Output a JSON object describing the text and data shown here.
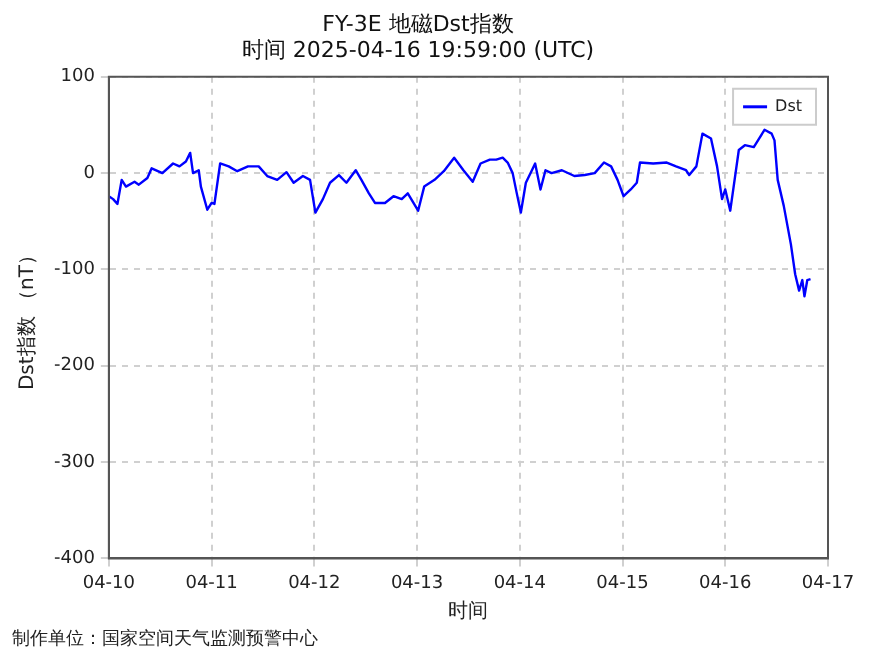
{
  "chart_data": {
    "type": "line",
    "title": "FY-3E 地磁Dst指数",
    "subtitle": "时间 2025-04-16 19:59:00 (UTC)",
    "xlabel": "时间",
    "ylabel": "Dst指数 （nT）",
    "annotations": [
      "制作单位：国家空间天气监测预警中心"
    ],
    "xlim": [
      "2025-04-10",
      "2025-04-17"
    ],
    "xticks": [
      {
        "value": "2025-04-10",
        "label": "04-10"
      },
      {
        "value": "2025-04-11",
        "label": "04-11"
      },
      {
        "value": "2025-04-12",
        "label": "04-12"
      },
      {
        "value": "2025-04-13",
        "label": "04-13"
      },
      {
        "value": "2025-04-14",
        "label": "04-14"
      },
      {
        "value": "2025-04-15",
        "label": "04-15"
      },
      {
        "value": "2025-04-16",
        "label": "04-16"
      },
      {
        "value": "2025-04-17",
        "label": "04-17"
      }
    ],
    "ylim": [
      -400,
      100
    ],
    "yticks": [
      -400,
      -300,
      -200,
      -100,
      0,
      100
    ],
    "grid": true,
    "legend": "top right",
    "marker": "none",
    "line_style": "solid",
    "x": [
      "2025-04-10T00:00",
      "2025-04-10T01:00",
      "2025-04-10T02:00",
      "2025-04-10T03:00",
      "2025-04-10T04:00",
      "2025-04-10T06:00",
      "2025-04-10T07:00",
      "2025-04-10T09:00",
      "2025-04-10T10:00",
      "2025-04-10T12:30",
      "2025-04-10T15:00",
      "2025-04-10T16:30",
      "2025-04-10T18:00",
      "2025-04-10T19:00",
      "2025-04-10T19:40",
      "2025-04-10T21:00",
      "2025-04-10T21:30",
      "2025-04-10T23:00",
      "2025-04-11T00:00",
      "2025-04-11T00:40",
      "2025-04-11T02:00",
      "2025-04-11T04:00",
      "2025-04-11T06:00",
      "2025-04-11T08:30",
      "2025-04-11T11:00",
      "2025-04-11T13:00",
      "2025-04-11T15:20",
      "2025-04-11T17:30",
      "2025-04-11T19:10",
      "2025-04-11T21:20",
      "2025-04-11T23:00",
      "2025-04-12T00:15",
      "2025-04-12T02:00",
      "2025-04-12T03:40",
      "2025-04-12T05:45",
      "2025-04-12T07:30",
      "2025-04-12T09:40",
      "2025-04-12T11:00",
      "2025-04-12T12:45",
      "2025-04-12T14:10",
      "2025-04-12T16:30",
      "2025-04-12T18:30",
      "2025-04-12T20:25",
      "2025-04-12T21:50",
      "2025-04-13T00:15",
      "2025-04-13T01:40",
      "2025-04-13T04:05",
      "2025-04-13T06:15",
      "2025-04-13T08:40",
      "2025-04-13T10:50",
      "2025-04-13T13:00",
      "2025-04-13T14:50",
      "2025-04-13T17:00",
      "2025-04-13T18:30",
      "2025-04-13T20:00",
      "2025-04-13T21:10",
      "2025-04-13T22:20",
      "2025-04-13T23:15",
      "2025-04-14T00:15",
      "2025-04-14T01:25",
      "2025-04-14T02:50",
      "2025-04-14T03:35",
      "2025-04-14T04:50",
      "2025-04-14T06:00",
      "2025-04-14T07:25",
      "2025-04-14T09:50",
      "2025-04-14T12:45",
      "2025-04-14T15:10",
      "2025-04-14T17:30",
      "2025-04-14T19:40",
      "2025-04-14T21:20",
      "2025-04-14T22:50",
      "2025-04-15T00:15",
      "2025-04-15T01:55",
      "2025-04-15T03:20",
      "2025-04-15T04:05",
      "2025-04-15T07:10",
      "2025-04-15T10:20",
      "2025-04-15T12:30",
      "2025-04-15T14:50",
      "2025-04-15T15:35",
      "2025-04-15T17:15",
      "2025-04-15T18:40",
      "2025-04-15T20:40",
      "2025-04-15T22:05",
      "2025-04-15T23:15",
      "2025-04-16T00:00",
      "2025-04-16T01:10",
      "2025-04-16T03:10",
      "2025-04-16T04:35",
      "2025-04-16T06:40",
      "2025-04-16T09:10",
      "2025-04-16T10:50",
      "2025-04-16T11:30",
      "2025-04-16T12:15",
      "2025-04-16T13:40",
      "2025-04-16T15:20",
      "2025-04-16T16:20",
      "2025-04-16T17:15",
      "2025-04-16T18:00",
      "2025-04-16T18:30",
      "2025-04-16T19:10",
      "2025-04-16T19:55"
    ],
    "series": [
      {
        "name": "Dst",
        "color": "#0000ff",
        "values": [
          -24,
          -27,
          -32,
          -7,
          -14,
          -9,
          -12,
          -5,
          5,
          0,
          10,
          7,
          12,
          21,
          0,
          3,
          -14,
          -38,
          -31,
          -32,
          10,
          7,
          2,
          7,
          7,
          -3,
          -7,
          1,
          -10,
          -3,
          -7,
          -41,
          -27,
          -10,
          -2,
          -10,
          3,
          -7,
          -21,
          -31,
          -31,
          -24,
          -27,
          -21,
          -39,
          -14,
          -7,
          2,
          16,
          3,
          -9,
          10,
          14,
          14,
          16,
          11,
          0,
          -20,
          -41,
          -10,
          3,
          10,
          -17,
          3,
          0,
          3,
          -3,
          -2,
          0,
          11,
          7,
          -7,
          -24,
          -17,
          -10,
          11,
          10,
          11,
          7,
          3,
          -2,
          7,
          41,
          36,
          7,
          -27,
          -17,
          -39,
          24,
          29,
          27,
          45,
          41,
          34,
          -7,
          -34,
          -74,
          -105,
          -122,
          -111,
          -128,
          -111,
          -110
        ]
      }
    ]
  }
}
